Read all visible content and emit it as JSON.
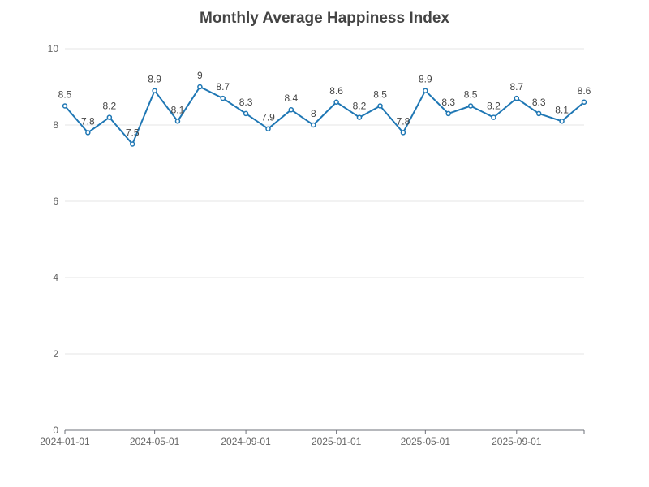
{
  "chart_data": {
    "type": "line",
    "title": "Monthly Average Happiness Index",
    "xlabel": "",
    "ylabel": "",
    "ylim": [
      0,
      10
    ],
    "yticks": [
      0,
      2,
      4,
      6,
      8,
      10
    ],
    "x_tick_labels": [
      "2024-01-01",
      "2024-05-01",
      "2024-09-01",
      "2025-01-01",
      "2025-05-01",
      "2025-09-01"
    ],
    "x": [
      "2024-01-01",
      "2024-02-01",
      "2024-03-01",
      "2024-04-01",
      "2024-05-01",
      "2024-06-01",
      "2024-07-01",
      "2024-08-01",
      "2024-09-01",
      "2024-10-01",
      "2024-11-01",
      "2024-12-01",
      "2025-01-01",
      "2025-02-01",
      "2025-03-01",
      "2025-04-01",
      "2025-05-01",
      "2025-06-01",
      "2025-07-01",
      "2025-08-01",
      "2025-09-01",
      "2025-10-01",
      "2025-11-01",
      "2025-12-01"
    ],
    "series": [
      {
        "values": [
          8.5,
          7.8,
          8.2,
          7.5,
          8.9,
          8.1,
          9,
          8.7,
          8.3,
          7.9,
          8.4,
          8,
          8.6,
          8.2,
          8.5,
          7.8,
          8.9,
          8.3,
          8.5,
          8.2,
          8.7,
          8.3,
          8.1,
          8.6
        ],
        "color": "#1f77b4"
      }
    ],
    "grid": true,
    "legend": "none"
  }
}
